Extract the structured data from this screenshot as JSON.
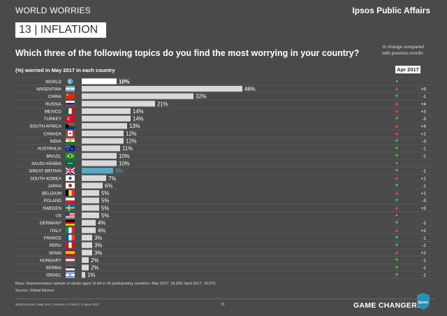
{
  "header": {
    "series_title": "WORLD WORRIES",
    "brand": "Ipsos Public Affairs",
    "topic": "13 | INFLATION"
  },
  "question": "Which three of the following topics do you find the most worrying in your country?",
  "change_note": [
    "% change compared",
    "with previous month:"
  ],
  "subheading": "(%) worried in May 2017 in each country",
  "comparison_period": "Apr 2017",
  "chart_data": {
    "type": "bar",
    "orientation": "horizontal",
    "title": "",
    "xlabel": "",
    "ylabel": "",
    "xlim": [
      0,
      100
    ],
    "value_suffix": "%",
    "bar_color": "#d9d9d9",
    "highlight_color": "#5aaac4",
    "world_bar_color": "#ffffff",
    "categories": [
      "WORLD",
      "ARGENTINA",
      "CHINA",
      "RUSSIA",
      "MEXICO",
      "TURKEY",
      "SOUTH AFRICA",
      "CANADA",
      "INDIA",
      "AUSTRALIA",
      "BRAZIL",
      "SAUDI ARABIA",
      "GREAT BRITAIN",
      "SOUTH KOREA",
      "JAPAN",
      "BELGIUM",
      "POLAND",
      "SWEDEN",
      "US",
      "GERMANY",
      "ITALY",
      "FRANCE",
      "PERU",
      "SPAIN",
      "HUNGARY",
      "SERBIA",
      "ISRAEL"
    ],
    "values": [
      10,
      46,
      32,
      21,
      14,
      14,
      13,
      12,
      12,
      11,
      10,
      10,
      9,
      7,
      6,
      5,
      5,
      5,
      5,
      4,
      4,
      3,
      3,
      3,
      2,
      2,
      1
    ],
    "highlight": [
      "GREAT BRITAIN"
    ],
    "change_labels": [
      "",
      "+5",
      "-1",
      "+4",
      "+3",
      "-3",
      "+4",
      "+1",
      "-3",
      "-1",
      "-2",
      "",
      "-1",
      "+1",
      "-1",
      "+1",
      "-3",
      "+3",
      "",
      "-1",
      "+2",
      "-1",
      "-2",
      "+2",
      "-1",
      "-1",
      "-1"
    ],
    "change_direction": [
      "none",
      "up",
      "down",
      "up",
      "up",
      "down",
      "up",
      "up",
      "down",
      "down",
      "down",
      "none",
      "down",
      "up",
      "down",
      "up",
      "down",
      "up",
      "none",
      "down",
      "up",
      "down",
      "down",
      "up",
      "down",
      "down",
      "down"
    ],
    "up_color": "#e0474c",
    "down_color": "#4fb848"
  },
  "flags": [
    "globe-icon",
    "argentina-flag-icon",
    "china-flag-icon",
    "russia-flag-icon",
    "mexico-flag-icon",
    "turkey-flag-icon",
    "south-africa-flag-icon",
    "canada-flag-icon",
    "india-flag-icon",
    "australia-flag-icon",
    "brazil-flag-icon",
    "saudi-arabia-flag-icon",
    "great-britain-flag-icon",
    "south-korea-flag-icon",
    "japan-flag-icon",
    "belgium-flag-icon",
    "poland-flag-icon",
    "sweden-flag-icon",
    "us-flag-icon",
    "germany-flag-icon",
    "italy-flag-icon",
    "france-flag-icon",
    "peru-flag-icon",
    "spain-flag-icon",
    "hungary-flag-icon",
    "serbia-flag-icon",
    "israel-flag-icon"
  ],
  "footnote": "Base: Representative sample of adults aged 16-64 in 26 participating countries. May 2017: 18,550; April 2017: 18,573.",
  "source": "Source: Global Advisor",
  "footer": {
    "left": "World Worries  | May 2017  | Version 1  |  Public  |  © Ipsos 2017",
    "page": "26",
    "tagline": "GAME CHANGERS",
    "logo_text": "Ipsos"
  }
}
